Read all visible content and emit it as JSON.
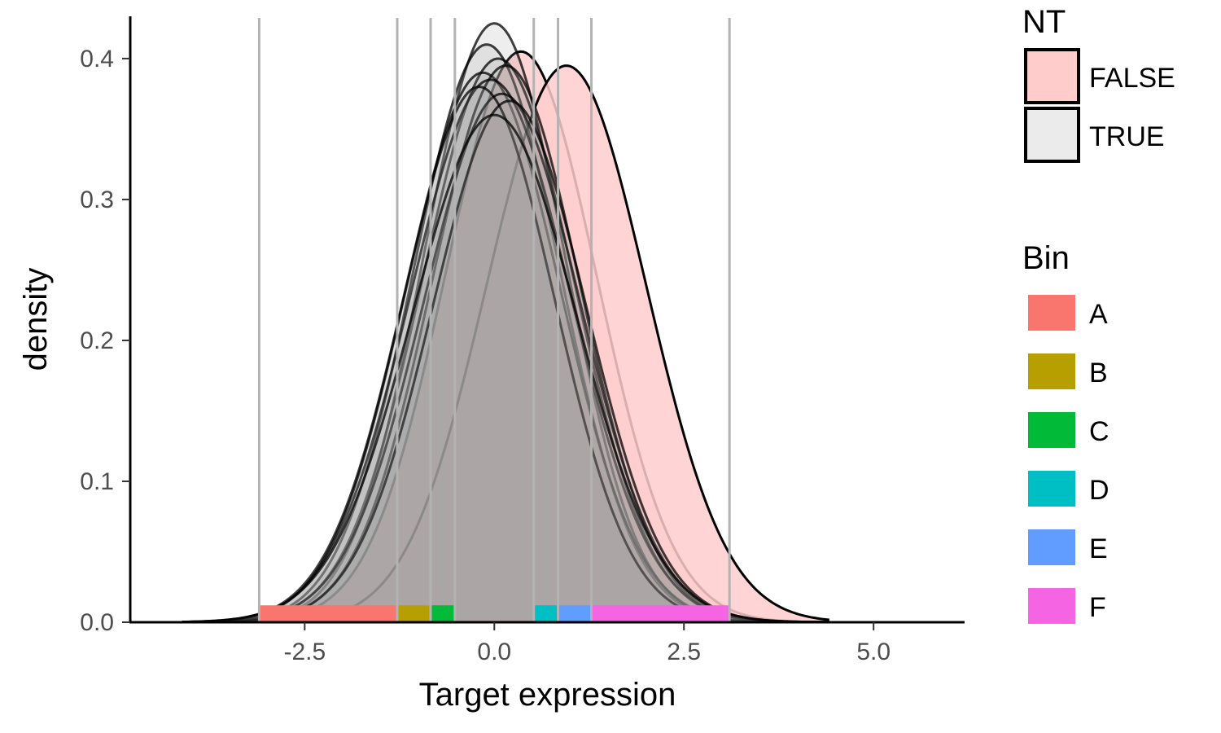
{
  "chart_data": {
    "type": "area",
    "title": "",
    "xlabel": "Target expression",
    "ylabel": "density",
    "xlim": [
      -4.8,
      6.2
    ],
    "ylim": [
      0,
      0.43
    ],
    "x_ticks": [
      -2.5,
      0.0,
      2.5,
      5.0
    ],
    "x_tick_labels": [
      "-2.5",
      "0.0",
      "2.5",
      "5.0"
    ],
    "y_ticks": [
      0.0,
      0.1,
      0.2,
      0.3,
      0.4
    ],
    "y_tick_labels": [
      "0.0",
      "0.1",
      "0.2",
      "0.3",
      "0.4"
    ],
    "grid": false,
    "bin_boundaries": [
      -3.1,
      -1.28,
      -0.84,
      -0.52,
      0.52,
      0.84,
      1.28,
      3.1
    ],
    "bins": [
      {
        "name": "A",
        "from": -3.1,
        "to": -1.28,
        "color": "#F8766D"
      },
      {
        "name": "B",
        "from": -1.28,
        "to": -0.84,
        "color": "#B79F00"
      },
      {
        "name": "C",
        "from": -0.84,
        "to": -0.52,
        "color": "#00BA38"
      },
      {
        "name": "D",
        "from": 0.52,
        "to": 0.84,
        "color": "#00BFC4"
      },
      {
        "name": "E",
        "from": 0.84,
        "to": 1.28,
        "color": "#619CFF"
      },
      {
        "name": "F",
        "from": 1.28,
        "to": 3.1,
        "color": "#F564E3"
      }
    ],
    "series": [
      {
        "nt": "TRUE",
        "mean": 0.0,
        "sd": 0.94,
        "peak": 0.425
      },
      {
        "nt": "TRUE",
        "mean": -0.1,
        "sd": 0.97,
        "peak": 0.41
      },
      {
        "nt": "TRUE",
        "mean": 0.05,
        "sd": 1.0,
        "peak": 0.4
      },
      {
        "nt": "TRUE",
        "mean": -0.15,
        "sd": 1.02,
        "peak": 0.39
      },
      {
        "nt": "TRUE",
        "mean": 0.15,
        "sd": 0.98,
        "peak": 0.395
      },
      {
        "nt": "TRUE",
        "mean": -0.05,
        "sd": 1.05,
        "peak": 0.385
      },
      {
        "nt": "TRUE",
        "mean": 0.1,
        "sd": 1.03,
        "peak": 0.375
      },
      {
        "nt": "TRUE",
        "mean": -0.2,
        "sd": 0.99,
        "peak": 0.38
      },
      {
        "nt": "TRUE",
        "mean": 0.2,
        "sd": 1.01,
        "peak": 0.37
      },
      {
        "nt": "TRUE",
        "mean": 0.0,
        "sd": 1.08,
        "peak": 0.36
      },
      {
        "nt": "FALSE",
        "mean": 0.35,
        "sd": 1.0,
        "peak": 0.405
      },
      {
        "nt": "FALSE",
        "mean": 0.95,
        "sd": 1.05,
        "peak": 0.395
      }
    ],
    "legend": {
      "nt_title": "NT",
      "nt_items": [
        {
          "label": "FALSE",
          "color": "#FFCCCC"
        },
        {
          "label": "TRUE",
          "color": "#EBEBEB"
        }
      ],
      "bin_title": "Bin",
      "bin_items": [
        {
          "label": "A",
          "color": "#F8766D"
        },
        {
          "label": "B",
          "color": "#B79F00"
        },
        {
          "label": "C",
          "color": "#00BA38"
        },
        {
          "label": "D",
          "color": "#00BFC4"
        },
        {
          "label": "E",
          "color": "#619CFF"
        },
        {
          "label": "F",
          "color": "#F564E3"
        }
      ]
    }
  }
}
